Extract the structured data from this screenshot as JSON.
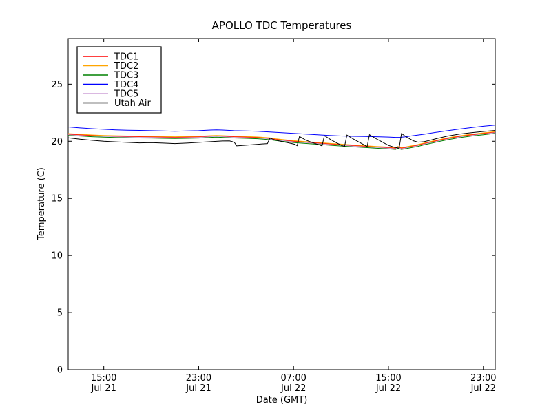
{
  "figure": {
    "background": "#ffffff",
    "frame_color": "#000000"
  },
  "chart_data": {
    "type": "line",
    "title": "APOLLO TDC Temperatures",
    "xlabel": "Date (GMT)",
    "ylabel": "Temperature (C)",
    "x_unit": "hours_since_jul21_1200_gmt",
    "xlim": [
      0,
      36
    ],
    "ylim": [
      0,
      29
    ],
    "grid": false,
    "legend_position": "upper-left",
    "x_ticks": [
      {
        "h": 3,
        "time": "15:00",
        "date": "Jul 21"
      },
      {
        "h": 11,
        "time": "23:00",
        "date": "Jul 21"
      },
      {
        "h": 19,
        "time": "07:00",
        "date": "Jul 22"
      },
      {
        "h": 27,
        "time": "15:00",
        "date": "Jul 22"
      },
      {
        "h": 35,
        "time": "23:00",
        "date": "Jul 22"
      }
    ],
    "y_ticks": [
      0,
      5,
      10,
      15,
      20,
      25
    ],
    "cluster_base": [
      [
        0,
        20.68
      ],
      [
        1,
        20.62
      ],
      [
        2,
        20.56
      ],
      [
        3,
        20.52
      ],
      [
        4,
        20.49
      ],
      [
        5,
        20.47
      ],
      [
        6,
        20.45
      ],
      [
        7,
        20.44
      ],
      [
        8,
        20.42
      ],
      [
        9,
        20.4
      ],
      [
        10,
        20.42
      ],
      [
        11,
        20.44
      ],
      [
        12,
        20.5
      ],
      [
        12.5,
        20.52
      ],
      [
        13,
        20.5
      ],
      [
        14,
        20.45
      ],
      [
        15,
        20.42
      ],
      [
        16,
        20.38
      ],
      [
        17,
        20.3
      ],
      [
        17.5,
        20.22
      ],
      [
        18,
        20.16
      ],
      [
        19,
        20.05
      ],
      [
        20,
        19.97
      ],
      [
        21,
        19.9
      ],
      [
        22,
        19.82
      ],
      [
        23,
        19.75
      ],
      [
        24,
        19.68
      ],
      [
        25,
        19.62
      ],
      [
        26,
        19.55
      ],
      [
        27,
        19.5
      ],
      [
        27.6,
        19.45
      ],
      [
        27.8,
        19.55
      ],
      [
        28.1,
        19.45
      ],
      [
        28.5,
        19.52
      ],
      [
        29,
        19.62
      ],
      [
        29.5,
        19.72
      ],
      [
        30,
        19.85
      ],
      [
        31,
        20.08
      ],
      [
        32,
        20.3
      ],
      [
        33,
        20.48
      ],
      [
        34,
        20.62
      ],
      [
        35,
        20.74
      ],
      [
        36,
        20.85
      ]
    ],
    "series": [
      {
        "name": "TDC3",
        "color": "#008000",
        "base": "cluster_base",
        "offset": -0.16
      },
      {
        "name": "TDC5",
        "color": "#CDA0D7",
        "base": "cluster_base",
        "offset": -0.09
      },
      {
        "name": "TDC1",
        "color": "#FF0000",
        "base": "cluster_base",
        "offset": -0.04
      },
      {
        "name": "TDC2",
        "color": "#FFA500",
        "base": "cluster_base",
        "offset": 0
      },
      {
        "name": "TDC4",
        "color": "#0000FF",
        "points": [
          [
            0,
            21.25
          ],
          [
            1,
            21.17
          ],
          [
            2,
            21.1
          ],
          [
            3,
            21.05
          ],
          [
            4,
            21.0
          ],
          [
            5,
            20.97
          ],
          [
            6,
            20.95
          ],
          [
            7,
            20.93
          ],
          [
            8,
            20.9
          ],
          [
            9,
            20.88
          ],
          [
            10,
            20.9
          ],
          [
            11,
            20.93
          ],
          [
            12,
            20.98
          ],
          [
            12.5,
            21.0
          ],
          [
            13,
            20.98
          ],
          [
            14,
            20.93
          ],
          [
            15,
            20.9
          ],
          [
            16,
            20.87
          ],
          [
            17,
            20.82
          ],
          [
            18,
            20.76
          ],
          [
            19,
            20.7
          ],
          [
            20,
            20.64
          ],
          [
            21,
            20.58
          ],
          [
            22,
            20.52
          ],
          [
            23,
            20.47
          ],
          [
            24,
            20.44
          ],
          [
            25,
            20.42
          ],
          [
            26,
            20.4
          ],
          [
            27,
            20.37
          ],
          [
            27.6,
            20.34
          ],
          [
            28,
            20.35
          ],
          [
            28.5,
            20.4
          ],
          [
            29,
            20.48
          ],
          [
            30,
            20.62
          ],
          [
            31,
            20.78
          ],
          [
            32,
            20.93
          ],
          [
            33,
            21.07
          ],
          [
            34,
            21.2
          ],
          [
            35,
            21.32
          ],
          [
            36,
            21.42
          ]
        ]
      },
      {
        "name": "Utah Air",
        "color": "#000000",
        "points": [
          [
            0,
            20.3
          ],
          [
            1,
            20.18
          ],
          [
            2,
            20.08
          ],
          [
            3,
            20.0
          ],
          [
            4,
            19.95
          ],
          [
            5,
            19.9
          ],
          [
            6,
            19.86
          ],
          [
            7,
            19.88
          ],
          [
            8,
            19.84
          ],
          [
            9,
            19.8
          ],
          [
            10,
            19.84
          ],
          [
            11,
            19.9
          ],
          [
            12,
            19.96
          ],
          [
            13,
            20.02
          ],
          [
            13.6,
            20.03
          ],
          [
            14.0,
            19.92
          ],
          [
            14.2,
            19.6
          ],
          [
            15,
            19.66
          ],
          [
            16,
            19.74
          ],
          [
            16.8,
            19.8
          ],
          [
            17.0,
            20.28
          ],
          [
            17.4,
            20.12
          ],
          [
            18,
            19.98
          ],
          [
            18.6,
            19.86
          ],
          [
            19.1,
            19.74
          ],
          [
            19.3,
            19.62
          ],
          [
            19.5,
            20.42
          ],
          [
            20,
            20.12
          ],
          [
            20.6,
            19.88
          ],
          [
            21.2,
            19.68
          ],
          [
            21.4,
            19.6
          ],
          [
            21.6,
            20.5
          ],
          [
            22.1,
            20.16
          ],
          [
            22.6,
            19.88
          ],
          [
            23.1,
            19.62
          ],
          [
            23.3,
            19.56
          ],
          [
            23.5,
            20.55
          ],
          [
            24,
            20.22
          ],
          [
            24.5,
            19.94
          ],
          [
            25,
            19.66
          ],
          [
            25.2,
            19.52
          ],
          [
            25.4,
            20.58
          ],
          [
            26,
            20.2
          ],
          [
            26.5,
            19.92
          ],
          [
            27,
            19.64
          ],
          [
            27.5,
            19.48
          ],
          [
            27.9,
            19.4
          ],
          [
            28.1,
            20.68
          ],
          [
            28.6,
            20.32
          ],
          [
            29.1,
            20.04
          ],
          [
            29.5,
            19.92
          ],
          [
            30,
            19.96
          ],
          [
            30.5,
            20.08
          ],
          [
            31,
            20.22
          ],
          [
            32,
            20.46
          ],
          [
            33,
            20.64
          ],
          [
            34,
            20.76
          ],
          [
            35,
            20.86
          ],
          [
            36,
            20.95
          ]
        ]
      }
    ]
  },
  "legend": {
    "items": [
      {
        "label": "TDC1",
        "color": "#FF0000"
      },
      {
        "label": "TDC2",
        "color": "#FFA500"
      },
      {
        "label": "TDC3",
        "color": "#008000"
      },
      {
        "label": "TDC4",
        "color": "#0000FF"
      },
      {
        "label": "TDC5",
        "color": "#CDA0D7"
      },
      {
        "label": "Utah Air",
        "color": "#000000"
      }
    ]
  }
}
